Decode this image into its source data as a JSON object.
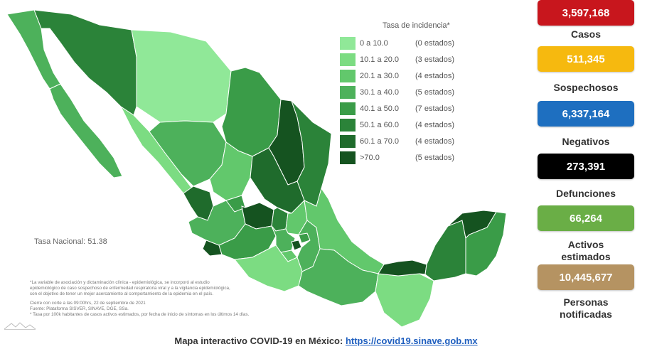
{
  "legend": {
    "title": "Tasa de incidencia*",
    "rows": [
      {
        "range": "0  a  10.0",
        "count": "(0 estados)",
        "color": "#90e898"
      },
      {
        "range": "10.1 a  20.0",
        "count": "(3 estados)",
        "color": "#7cdc82"
      },
      {
        "range": "20.1 a  30.0",
        "count": "(4 estados)",
        "color": "#62c86c"
      },
      {
        "range": "30.1 a  40.0",
        "count": "(5 estados)",
        "color": "#4db15b"
      },
      {
        "range": "40.1 a  50.0",
        "count": "(7 estados)",
        "color": "#3a9c48"
      },
      {
        "range": "50.1 a  60.0",
        "count": "(4 estados)",
        "color": "#2b8339"
      },
      {
        "range": "60.1 a  70.0",
        "count": "(4 estados)",
        "color": "#1f6b2c"
      },
      {
        "range": ">70.0",
        "count": "(5 estados)",
        "color": "#155320"
      }
    ]
  },
  "tasa_nacional": "Tasa Nacional: 51.38",
  "footnotes": [
    "*La variable de asociación y dictaminación clínica - epidemiológica, se incorporó al estudio",
    "epidemiológico de caso sospechoso de enfermedad respiratoria viral y a la vigilancia epidemiológica,",
    "con el objetivo de tener un mejor acercamiento al comportamiento de la epidemia en el país.",
    "Cierre con corte a las 09:00hrs, 22 de septiembre de 2021",
    "Fuente: Plataforma SISVER, SINAVE, DGE, SSa.",
    "* Tasa por 100k habitantes de casos activos estimados, por fecha de inicio de síntomas en los últimos 14 días."
  ],
  "bottom": {
    "prefix": "Mapa interactivo COVID-19 en México: ",
    "link": "https://covid19.sinave.gob.mx"
  },
  "stats": [
    {
      "value": "3,597,168",
      "label": "Casos",
      "color": "#c8161d"
    },
    {
      "value": "511,345",
      "label": "Sospechosos",
      "color": "#f6b90f"
    },
    {
      "value": "6,337,164",
      "label": "Negativos",
      "color": "#1e6fc0"
    },
    {
      "value": "273,391",
      "label": "Defunciones",
      "color": "#000000"
    },
    {
      "value": "66,264",
      "label": "Activos estimados",
      "color": "#6aae46"
    },
    {
      "value": "10,445,677",
      "label": "Personas notificadas",
      "color": "#b59362"
    }
  ]
}
